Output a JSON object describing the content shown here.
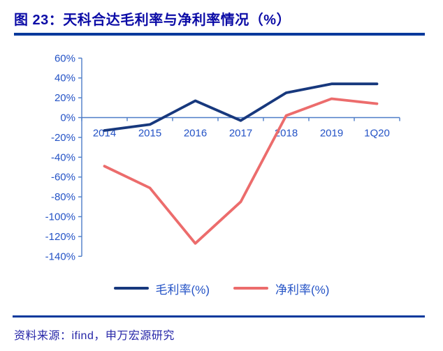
{
  "figure": {
    "title": "图 23：天科合达毛利率与净利率情况（%）",
    "source": "资料来源：ifind，申万宏源研究"
  },
  "colors": {
    "title_text": "#0b0ba6",
    "rule": "#05399c",
    "axis_line": "#4d7cc7",
    "axis_label": "#2453c6",
    "legend_label": "#2453c6",
    "source_text": "#2626a8",
    "gross_margin_line": "#17387d",
    "net_margin_line": "#ec6c6c"
  },
  "chart_data": {
    "type": "line",
    "title": "天科合达毛利率与净利率情况（%）",
    "categories": [
      "2014",
      "2015",
      "2016",
      "2017",
      "2018",
      "2019",
      "1Q20"
    ],
    "series": [
      {
        "key": "gross-margin",
        "name": "毛利率(%)",
        "color": "#17387d",
        "values": [
          -13,
          -7,
          17,
          -3,
          25,
          34,
          34
        ]
      },
      {
        "key": "net-margin",
        "name": "净利率(%)",
        "color": "#ec6c6c",
        "values": [
          -49,
          -71,
          -127,
          -85,
          2,
          19,
          14
        ]
      }
    ],
    "xlabel": "",
    "ylabel": "",
    "ylim": [
      -140,
      60
    ],
    "ytick_step": 20,
    "ytick_labels": [
      "60%",
      "40%",
      "20%",
      "0%",
      "-20%",
      "-40%",
      "-60%",
      "-80%",
      "-100%",
      "-120%",
      "-140%"
    ],
    "grid": false,
    "legend_position": "bottom"
  }
}
